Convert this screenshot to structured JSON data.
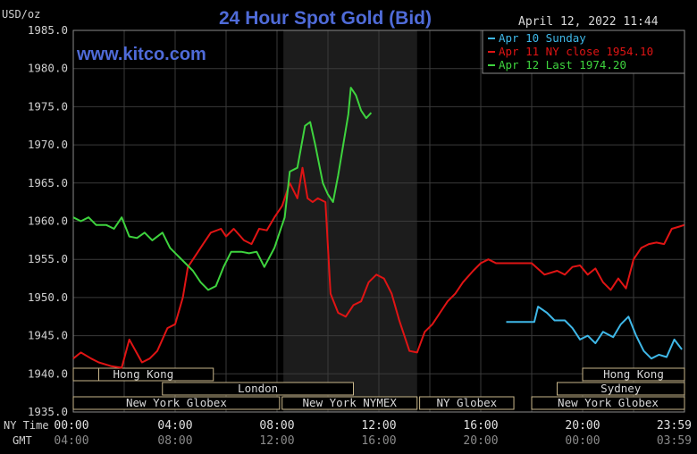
{
  "header": {
    "title": "24 Hour Spot Gold (Bid)",
    "unit": "USD/oz",
    "datetime": "April 12, 2022 11:44",
    "watermark": "www.kitco.com"
  },
  "colors": {
    "background": "#000000",
    "grid": "#3a3a3a",
    "session_shade": "#1c1c1c",
    "title": "#4f6bd8",
    "apr10": "#3fb8e8",
    "apr11": "#e01414",
    "apr12": "#3ed33e",
    "band": "#c8b68a"
  },
  "legend": [
    {
      "label": "Apr 10 Sunday",
      "color": "#3fb8e8"
    },
    {
      "label": "Apr 11 NY close 1954.10",
      "color": "#e01414"
    },
    {
      "label": "Apr 12 Last 1974.20",
      "color": "#3ed33e"
    }
  ],
  "axis": {
    "y_ticks": [
      "1985.0",
      "1980.0",
      "1975.0",
      "1970.0",
      "1965.0",
      "1960.0",
      "1955.0",
      "1950.0",
      "1945.0",
      "1940.0",
      "1935.0"
    ],
    "x_row1_label": "NY Time",
    "x_row2_label": "GMT",
    "x_row1": [
      "00:00",
      "04:00",
      "08:00",
      "12:00",
      "16:00",
      "20:00",
      "23:59"
    ],
    "x_row2": [
      "04:00",
      "08:00",
      "12:00",
      "16:00",
      "20:00",
      "00:00",
      "03:59"
    ]
  },
  "sessions": [
    {
      "label": "Hong Kong",
      "start": 0.0,
      "end": 5.5
    },
    {
      "label": "",
      "start": 0.0,
      "end": 1.0
    },
    {
      "label": "London",
      "start": 3.5,
      "end": 11.0
    },
    {
      "label": "New York Globex",
      "start": 0.0,
      "end": 8.1
    },
    {
      "label": "New York NYMEX",
      "start": 8.2,
      "end": 13.5
    },
    {
      "label": "NY Globex",
      "start": 13.6,
      "end": 17.3
    },
    {
      "label": "Hong Kong",
      "start": 20.0,
      "end": 24.0
    },
    {
      "label": "Sydney",
      "start": 19.0,
      "end": 24.0
    },
    {
      "label": "New York Globex",
      "start": 18.0,
      "end": 24.0
    }
  ],
  "chart_data": {
    "type": "line",
    "title": "24 Hour Spot Gold (Bid)",
    "ylabel": "USD/oz",
    "xlabel": "",
    "xlim": [
      0,
      24
    ],
    "ylim": [
      1935,
      1985
    ],
    "grid": true,
    "legend_position": "top-right",
    "shaded_region": [
      8.25,
      13.5
    ],
    "series": [
      {
        "name": "Apr 10 Sunday",
        "color": "#3fb8e8",
        "x": [
          17.0,
          17.8,
          18.1,
          18.25,
          18.6,
          18.9,
          19.3,
          19.6,
          19.9,
          20.2,
          20.5,
          20.8,
          21.2,
          21.5,
          21.8,
          22.1,
          22.4,
          22.7,
          23.0,
          23.3,
          23.6,
          23.9
        ],
        "y": [
          1946.8,
          1946.8,
          1946.8,
          1948.8,
          1948.0,
          1947.0,
          1947.0,
          1946.0,
          1944.5,
          1945.0,
          1944.0,
          1945.5,
          1944.8,
          1946.5,
          1947.5,
          1945.0,
          1943.0,
          1942.0,
          1942.5,
          1942.2,
          1944.5,
          1943.2
        ]
      },
      {
        "name": "Apr 11 NY close 1954.10",
        "color": "#e01414",
        "x": [
          0.0,
          0.3,
          0.7,
          1.0,
          1.5,
          1.9,
          2.2,
          2.7,
          3.0,
          3.3,
          3.7,
          4.0,
          4.3,
          4.5,
          4.8,
          5.1,
          5.4,
          5.8,
          6.0,
          6.3,
          6.7,
          7.0,
          7.3,
          7.6,
          7.9,
          8.2,
          8.5,
          8.8,
          9.0,
          9.2,
          9.4,
          9.6,
          9.9,
          10.1,
          10.4,
          10.7,
          11.0,
          11.3,
          11.6,
          11.9,
          12.2,
          12.5,
          12.8,
          13.0,
          13.2,
          13.5,
          13.8,
          14.1,
          14.4,
          14.7,
          15.0,
          15.3,
          15.7,
          16.0,
          16.3,
          16.6,
          17.0,
          17.5,
          18.0,
          18.5,
          19.0,
          19.3,
          19.6,
          19.9,
          20.2,
          20.5,
          20.8,
          21.1,
          21.4,
          21.7,
          22.0,
          22.3,
          22.6,
          22.9,
          23.2,
          23.5,
          23.8,
          23.99
        ],
        "y": [
          1942.0,
          1942.8,
          1942.0,
          1941.5,
          1941.0,
          1940.8,
          1944.5,
          1941.5,
          1942.0,
          1943.0,
          1946.0,
          1946.5,
          1950.0,
          1954.0,
          1955.5,
          1957.0,
          1958.5,
          1959.0,
          1958.0,
          1959.0,
          1957.5,
          1957.0,
          1959.0,
          1958.8,
          1960.5,
          1962.0,
          1965.0,
          1963.0,
          1967.0,
          1963.0,
          1962.5,
          1963.0,
          1962.5,
          1950.5,
          1948.0,
          1947.5,
          1949.0,
          1949.5,
          1952.0,
          1953.0,
          1952.5,
          1950.5,
          1947.0,
          1945.0,
          1943.0,
          1942.8,
          1945.5,
          1946.5,
          1948.0,
          1949.5,
          1950.5,
          1952.0,
          1953.5,
          1954.5,
          1955.0,
          1954.5,
          1954.5,
          1954.5,
          1954.5,
          1953.0,
          1953.5,
          1953.0,
          1954.0,
          1954.2,
          1953.0,
          1953.8,
          1952.0,
          1951.0,
          1952.5,
          1951.2,
          1955.0,
          1956.5,
          1957.0,
          1957.2,
          1957.0,
          1959.0,
          1959.3,
          1959.5
        ]
      },
      {
        "name": "Apr 12 Last 1974.20",
        "color": "#3ed33e",
        "x": [
          0.0,
          0.3,
          0.6,
          0.9,
          1.3,
          1.6,
          1.9,
          2.2,
          2.5,
          2.8,
          3.1,
          3.5,
          3.8,
          4.1,
          4.4,
          4.7,
          5.0,
          5.3,
          5.6,
          5.9,
          6.2,
          6.6,
          6.9,
          7.2,
          7.5,
          7.9,
          8.1,
          8.3,
          8.5,
          8.8,
          9.1,
          9.3,
          9.5,
          9.8,
          10.0,
          10.2,
          10.4,
          10.6,
          10.8,
          10.9,
          11.1,
          11.3,
          11.5,
          11.7
        ],
        "y": [
          1960.5,
          1960.0,
          1960.5,
          1959.5,
          1959.5,
          1959.0,
          1960.5,
          1958.0,
          1957.8,
          1958.5,
          1957.5,
          1958.5,
          1956.5,
          1955.5,
          1954.5,
          1953.5,
          1952.0,
          1951.0,
          1951.5,
          1954.0,
          1956.0,
          1956.0,
          1955.8,
          1956.0,
          1954.0,
          1956.5,
          1958.5,
          1960.5,
          1966.5,
          1967.0,
          1972.5,
          1973.0,
          1970.0,
          1965.0,
          1963.5,
          1962.5,
          1966.0,
          1970.0,
          1974.0,
          1977.5,
          1976.5,
          1974.5,
          1973.5,
          1974.2
        ]
      }
    ]
  }
}
